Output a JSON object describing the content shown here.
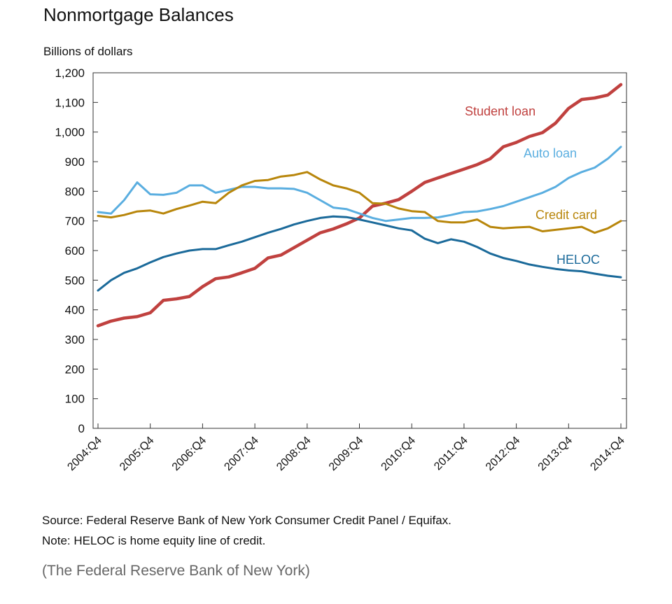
{
  "page": {
    "title": "Nonmortgage Balances",
    "units": "Billions of dollars",
    "source": "Source: Federal Reserve Bank of New York Consumer Credit Panel / Equifax.",
    "note": "Note: HELOC is home equity line of credit.",
    "credit": "(The Federal Reserve Bank of New York)"
  },
  "colors": {
    "student_loan": "#c0413f",
    "auto_loan": "#5aaee0",
    "credit_card": "#b8860b",
    "heloc": "#1b6a9a",
    "axis": "#333333"
  },
  "chart_data": {
    "type": "line",
    "title": "Nonmortgage Balances",
    "ylabel": "Billions of dollars",
    "ylim": [
      0,
      1200
    ],
    "yticks": [
      "0",
      "100",
      "200",
      "300",
      "400",
      "500",
      "600",
      "700",
      "800",
      "900",
      "1,000",
      "1,100",
      "1,200"
    ],
    "x_tick_labels": [
      "2004:Q4",
      "2005:Q4",
      "2006:Q4",
      "2007:Q4",
      "2008:Q4",
      "2009:Q4",
      "2010:Q4",
      "2011:Q4",
      "2012:Q4",
      "2013:Q4",
      "2014:Q4"
    ],
    "grid": false,
    "series": [
      {
        "name": "Student loan",
        "color_key": "student_loan",
        "values": [
          346,
          362,
          372,
          377,
          390,
          432,
          437,
          445,
          478,
          505,
          511,
          525,
          540,
          575,
          585,
          610,
          635,
          660,
          673,
          690,
          710,
          750,
          760,
          772,
          800,
          830,
          845,
          860,
          875,
          890,
          910,
          950,
          965,
          985,
          998,
          1030,
          1080,
          1110,
          1115,
          1125,
          1160
        ]
      },
      {
        "name": "Auto loan",
        "color_key": "auto_loan",
        "values": [
          730,
          725,
          770,
          830,
          790,
          788,
          795,
          820,
          820,
          795,
          805,
          815,
          815,
          810,
          810,
          808,
          795,
          770,
          745,
          740,
          725,
          710,
          700,
          705,
          710,
          710,
          712,
          720,
          730,
          732,
          740,
          750,
          765,
          780,
          795,
          815,
          845,
          865,
          880,
          910,
          950
        ]
      },
      {
        "name": "Credit card",
        "color_key": "credit_card",
        "values": [
          717,
          712,
          720,
          732,
          735,
          725,
          740,
          752,
          765,
          760,
          795,
          820,
          835,
          838,
          850,
          855,
          865,
          840,
          820,
          810,
          795,
          760,
          758,
          742,
          733,
          730,
          700,
          695,
          695,
          705,
          680,
          675,
          678,
          680,
          665,
          670,
          675,
          680,
          660,
          675,
          700
        ]
      },
      {
        "name": "HELOC",
        "color_key": "heloc",
        "values": [
          465,
          500,
          525,
          540,
          560,
          578,
          590,
          600,
          605,
          605,
          618,
          630,
          645,
          660,
          673,
          688,
          700,
          710,
          715,
          713,
          705,
          695,
          685,
          675,
          668,
          640,
          625,
          638,
          630,
          612,
          590,
          575,
          565,
          553,
          545,
          538,
          533,
          530,
          522,
          515,
          510
        ]
      }
    ],
    "series_labels": [
      {
        "text": "Student loan",
        "color_key": "student_loan"
      },
      {
        "text": "Auto loan",
        "color_key": "auto_loan"
      },
      {
        "text": "Credit card",
        "color_key": "credit_card"
      },
      {
        "text": "HELOC",
        "color_key": "heloc"
      }
    ]
  }
}
